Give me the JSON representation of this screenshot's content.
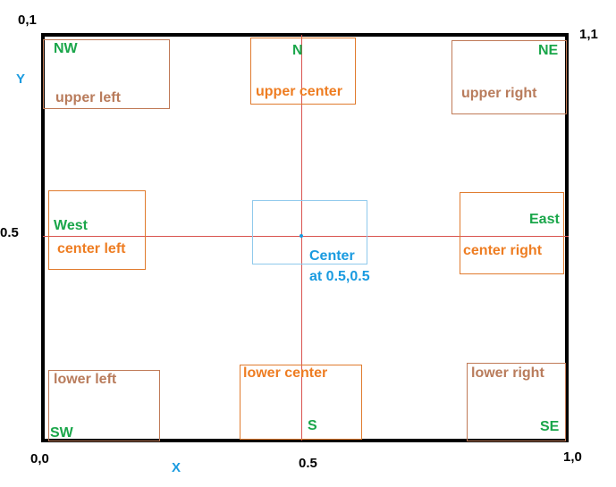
{
  "corners": {
    "top_left": "0,1",
    "top_right": "1,1",
    "bottom_left": "0,0",
    "bottom_right": "1,0"
  },
  "axes": {
    "y_label": "Y",
    "x_label": "X",
    "y_mid": "0.5",
    "x_mid": "0.5"
  },
  "compass": {
    "nw": "NW",
    "n": "N",
    "ne": "NE",
    "w": "West",
    "e": "East",
    "sw": "SW",
    "s": "S",
    "se": "SE"
  },
  "positions": {
    "upper_left": "upper left",
    "upper_center": "upper center",
    "upper_right": "upper right",
    "center_left": "center left",
    "center_right": "center right",
    "lower_left": "lower left",
    "lower_center": "lower center",
    "lower_right": "lower right"
  },
  "center": {
    "line1": "Center",
    "line2": "at 0.5,0.5"
  },
  "colors": {
    "frame": "#000000",
    "crosshair": "#d9534f",
    "compass_text": "#1aa64a",
    "position_orange": "#ee7d22",
    "position_brown": "#b97c5c",
    "axis_blue": "#1a9be0"
  }
}
